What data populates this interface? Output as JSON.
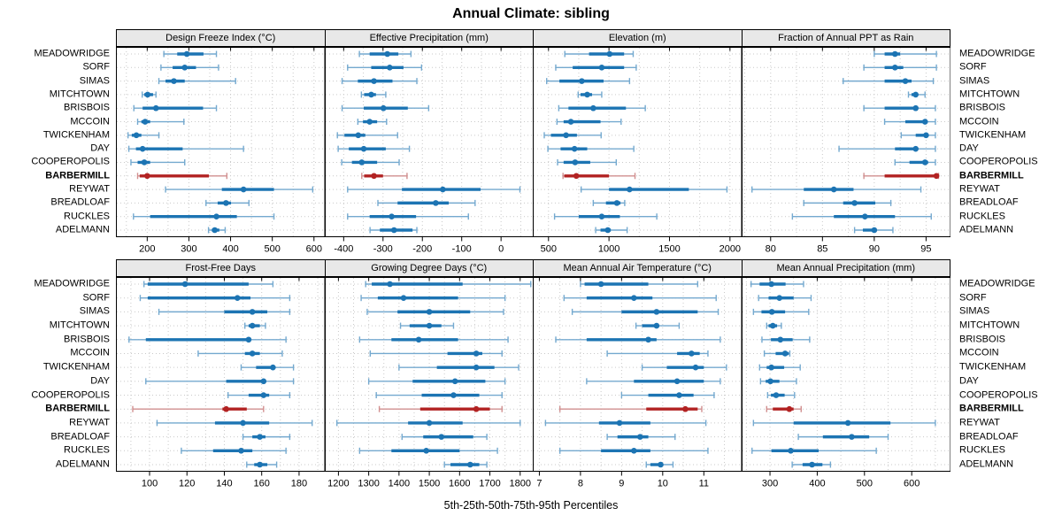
{
  "title": "Annual Climate: sibling",
  "caption": "5th-25th-50th-75th-95th Percentiles",
  "colors": {
    "blue": "#1c74b3",
    "blue_light": "#74a9cf",
    "red": "#b22222",
    "red_light": "#d18f8f",
    "strip_bg": "#e8e8e8",
    "grid": "#c9c9c9",
    "border": "#000000"
  },
  "chart_data": {
    "type": "dot-interval",
    "note": "Each row shows 5th-25th-50th-75th-95th percentiles: thin whisker p5-p95, thick bar p25-p75, dot at p50",
    "percentiles": [
      5,
      25,
      50,
      75,
      95
    ],
    "grid": "dotted",
    "legend": "none",
    "sites": [
      "MEADOWRIDGE",
      "SORF",
      "SIMAS",
      "MITCHTOWN",
      "BRISBOIS",
      "MCCOIN",
      "TWICKENHAM",
      "DAY",
      "COOPEROPOLIS",
      "BARBERMILL",
      "REYWAT",
      "BREADLOAF",
      "RUCKLES",
      "ADELMANN"
    ],
    "highlight_site": "BARBERMILL",
    "panels": [
      {
        "title": "Design Freeze Index (°C)",
        "row": "top",
        "xlim": [
          125,
          627
        ],
        "xticks": [
          200,
          300,
          400,
          500,
          600
        ],
        "values": [
          [
            240,
            272,
            295,
            335,
            366
          ],
          [
            233,
            261,
            290,
            317,
            371
          ],
          [
            228,
            244,
            264,
            290,
            412
          ],
          [
            188,
            193,
            201,
            214,
            221
          ],
          [
            168,
            189,
            221,
            334,
            366
          ],
          [
            177,
            186,
            195,
            207,
            288
          ],
          [
            154,
            163,
            174,
            186,
            228
          ],
          [
            156,
            173,
            189,
            285,
            431
          ],
          [
            161,
            177,
            193,
            207,
            290
          ],
          [
            177,
            182,
            200,
            348,
            391
          ],
          [
            244,
            379,
            431,
            504,
            597
          ],
          [
            341,
            369,
            389,
            401,
            444
          ],
          [
            167,
            207,
            366,
            415,
            504
          ],
          [
            347,
            355,
            362,
            373,
            387
          ]
        ]
      },
      {
        "title": "Effective Precipitation (mm)",
        "row": "top",
        "xlim": [
          -448,
          84
        ],
        "xticks": [
          -400,
          -300,
          -200,
          -100,
          0
        ],
        "values": [
          [
            -360,
            -334,
            -289,
            -261,
            -229
          ],
          [
            -390,
            -330,
            -283,
            -248,
            -202
          ],
          [
            -404,
            -364,
            -323,
            -276,
            -214
          ],
          [
            -355,
            -348,
            -330,
            -318,
            -293
          ],
          [
            -404,
            -349,
            -299,
            -237,
            -184
          ],
          [
            -364,
            -351,
            -334,
            -315,
            -291
          ],
          [
            -416,
            -398,
            -363,
            -345,
            -263
          ],
          [
            -414,
            -387,
            -349,
            -293,
            -233
          ],
          [
            -405,
            -379,
            -354,
            -315,
            -259
          ],
          [
            -354,
            -348,
            -323,
            -300,
            -239
          ],
          [
            -390,
            -252,
            -148,
            -52,
            48
          ],
          [
            -313,
            -263,
            -166,
            -133,
            -66
          ],
          [
            -390,
            -334,
            -278,
            -216,
            -83
          ],
          [
            -333,
            -308,
            -272,
            -225,
            -214
          ]
        ]
      },
      {
        "title": "Elevation (m)",
        "row": "top",
        "xlim": [
          370,
          2100
        ],
        "xticks": [
          500,
          1000,
          1500,
          2000
        ],
        "values": [
          [
            635,
            835,
            1005,
            1125,
            1200
          ],
          [
            560,
            700,
            940,
            1125,
            1225
          ],
          [
            485,
            590,
            775,
            955,
            1170
          ],
          [
            745,
            765,
            820,
            860,
            940
          ],
          [
            585,
            665,
            870,
            1140,
            1300
          ],
          [
            570,
            625,
            685,
            930,
            1100
          ],
          [
            465,
            520,
            645,
            735,
            935
          ],
          [
            495,
            600,
            715,
            820,
            1205
          ],
          [
            575,
            625,
            720,
            845,
            1060
          ],
          [
            620,
            630,
            730,
            1000,
            1215
          ],
          [
            770,
            1000,
            1170,
            1660,
            1975
          ],
          [
            870,
            975,
            1065,
            1095,
            1130
          ],
          [
            550,
            750,
            940,
            1090,
            1395
          ],
          [
            890,
            930,
            990,
            1015,
            1150
          ]
        ]
      },
      {
        "title": "Fraction of Annual PPT as Rain",
        "row": "top",
        "xlim": [
          77.2,
          97.4
        ],
        "xticks": [
          80,
          85,
          90,
          95
        ],
        "values": [
          [
            90,
            91,
            92,
            92.5,
            96
          ],
          [
            89,
            91,
            92,
            92.8,
            96
          ],
          [
            87,
            91,
            93,
            93.6,
            95.7
          ],
          [
            93.3,
            93.6,
            94,
            94.2,
            94.9
          ],
          [
            89,
            91,
            94,
            94.2,
            95.9
          ],
          [
            91,
            93,
            94.9,
            95.1,
            95.9
          ],
          [
            92.6,
            94,
            95,
            95.2,
            95.9
          ],
          [
            86.6,
            92,
            94,
            94.2,
            95.9
          ],
          [
            92,
            93.4,
            94.9,
            95.2,
            95.9
          ],
          [
            89,
            91,
            96,
            96.1,
            96.2
          ],
          [
            78.2,
            83.2,
            86.1,
            88,
            94.5
          ],
          [
            83.2,
            87,
            88.1,
            90.1,
            91.6
          ],
          [
            82.1,
            86.1,
            89.1,
            92,
            95.5
          ],
          [
            88.1,
            88.9,
            90,
            90.1,
            91.8
          ]
        ]
      },
      {
        "title": "Frost-Free Days",
        "row": "bottom",
        "xlim": [
          82,
          194
        ],
        "xticks": [
          100,
          120,
          140,
          160,
          180
        ],
        "values": [
          [
            97,
            99,
            119,
            153,
            166
          ],
          [
            95,
            99,
            147,
            154,
            175
          ],
          [
            105,
            140,
            155,
            163,
            175
          ],
          [
            151,
            153,
            155,
            159,
            162
          ],
          [
            89,
            98,
            153,
            154,
            173
          ],
          [
            126,
            151,
            155,
            159,
            171
          ],
          [
            149,
            157,
            166,
            167,
            177
          ],
          [
            98,
            141,
            161,
            162,
            177
          ],
          [
            142,
            153,
            161,
            164,
            175
          ],
          [
            91,
            139,
            141,
            152,
            161
          ],
          [
            104,
            135,
            150,
            164,
            187
          ],
          [
            150,
            155,
            159,
            162,
            175
          ],
          [
            117,
            134,
            149,
            155,
            173
          ],
          [
            152,
            156,
            159,
            163,
            168
          ]
        ]
      },
      {
        "title": "Growing Degree Days (°C)",
        "row": "bottom",
        "xlim": [
          1155,
          1846
        ],
        "xticks": [
          1200,
          1300,
          1400,
          1500,
          1600,
          1700,
          1800
        ],
        "values": [
          [
            1290,
            1310,
            1370,
            1610,
            1835
          ],
          [
            1275,
            1330,
            1415,
            1595,
            1750
          ],
          [
            1295,
            1395,
            1500,
            1635,
            1745
          ],
          [
            1405,
            1435,
            1500,
            1540,
            1580
          ],
          [
            1270,
            1375,
            1465,
            1595,
            1760
          ],
          [
            1305,
            1560,
            1655,
            1675,
            1740
          ],
          [
            1400,
            1525,
            1655,
            1715,
            1795
          ],
          [
            1300,
            1445,
            1585,
            1685,
            1750
          ],
          [
            1325,
            1475,
            1580,
            1665,
            1740
          ],
          [
            1335,
            1470,
            1655,
            1700,
            1740
          ],
          [
            1195,
            1430,
            1500,
            1610,
            1800
          ],
          [
            1410,
            1480,
            1540,
            1645,
            1690
          ],
          [
            1270,
            1375,
            1490,
            1600,
            1725
          ],
          [
            1550,
            1570,
            1635,
            1665,
            1690
          ]
        ]
      },
      {
        "title": "Mean Annual Air Temperature (°C)",
        "row": "bottom",
        "xlim": [
          6.84,
          11.93
        ],
        "xticks": [
          7,
          8,
          9,
          10,
          11
        ],
        "values": [
          [
            8.0,
            8.1,
            8.5,
            9.65,
            10.85
          ],
          [
            7.6,
            8.15,
            9.3,
            9.75,
            11.3
          ],
          [
            7.8,
            9.0,
            9.85,
            10.85,
            11.35
          ],
          [
            9.35,
            9.5,
            9.85,
            9.9,
            10.4
          ],
          [
            7.4,
            8.15,
            9.65,
            9.85,
            11.4
          ],
          [
            8.65,
            10.35,
            10.7,
            10.9,
            11.1
          ],
          [
            9.5,
            10.1,
            10.8,
            11.0,
            11.55
          ],
          [
            8.15,
            9.3,
            10.35,
            11.0,
            11.4
          ],
          [
            9.0,
            9.65,
            10.4,
            10.75,
            11.25
          ],
          [
            7.5,
            9.6,
            10.55,
            10.85,
            10.95
          ],
          [
            7.15,
            8.45,
            8.95,
            9.7,
            11.05
          ],
          [
            8.65,
            8.9,
            9.45,
            9.65,
            10.3
          ],
          [
            7.5,
            8.5,
            9.3,
            9.7,
            11.1
          ],
          [
            9.6,
            9.7,
            9.95,
            10.0,
            10.25
          ]
        ]
      },
      {
        "title": "Mean Annual Precipitation (mm)",
        "row": "bottom",
        "xlim": [
          240,
          683
        ],
        "xticks": [
          300,
          400,
          500,
          600
        ],
        "values": [
          [
            260,
            278,
            303,
            333,
            371
          ],
          [
            276,
            297,
            320,
            350,
            387
          ],
          [
            265,
            282,
            304,
            332,
            382
          ],
          [
            293,
            297,
            306,
            315,
            324
          ],
          [
            283,
            302,
            322,
            348,
            384
          ],
          [
            288,
            312,
            332,
            340,
            342
          ],
          [
            278,
            293,
            303,
            330,
            364
          ],
          [
            280,
            291,
            301,
            320,
            356
          ],
          [
            295,
            302,
            313,
            331,
            352
          ],
          [
            293,
            306,
            341,
            350,
            366
          ],
          [
            265,
            350,
            465,
            555,
            650
          ],
          [
            360,
            412,
            473,
            510,
            550
          ],
          [
            262,
            303,
            344,
            403,
            525
          ],
          [
            347,
            369,
            389,
            411,
            428
          ]
        ]
      }
    ]
  }
}
